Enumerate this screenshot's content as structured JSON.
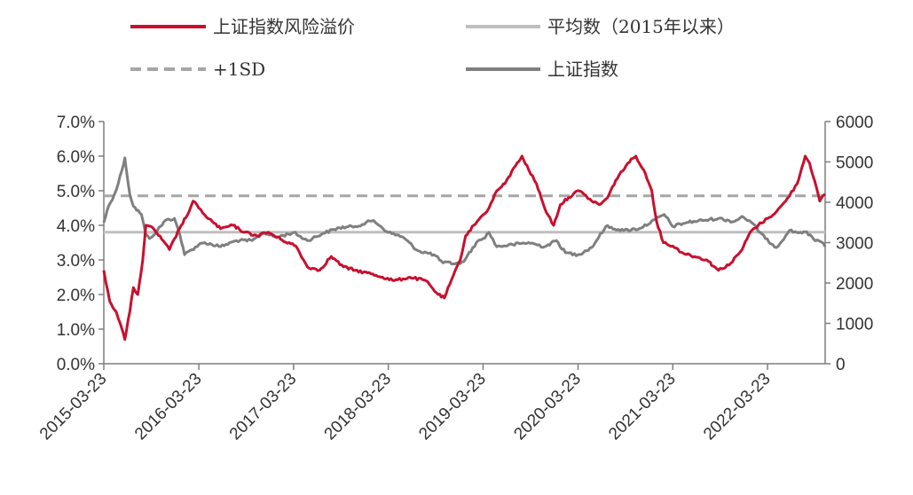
{
  "chart_data": {
    "type": "line",
    "x": {
      "type": "date",
      "start": "2015-03-23",
      "end": "2022-10-31",
      "ticks": [
        "2015-03-23",
        "2016-03-23",
        "2017-03-23",
        "2018-03-23",
        "2019-03-23",
        "2020-03-23",
        "2021-03-23",
        "2022-03-23"
      ]
    },
    "y_left": {
      "min": 0,
      "max": 0.07,
      "ticks": [
        "0.0%",
        "1.0%",
        "2.0%",
        "3.0%",
        "4.0%",
        "5.0%",
        "6.0%",
        "7.0%"
      ]
    },
    "y_right": {
      "min": 0,
      "max": 6000,
      "ticks": [
        "0",
        "1000",
        "2000",
        "3000",
        "4000",
        "5000",
        "6000"
      ]
    },
    "legend": [
      {
        "label": "上证指数风险溢价",
        "color": "#c8102e",
        "style": "solid"
      },
      {
        "label": "平均数（2015年以来）",
        "color": "#bfbfbf",
        "style": "solid"
      },
      {
        "label": "+1SD",
        "color": "#a6a6a6",
        "style": "dashed"
      },
      {
        "label": "上证指数",
        "color": "#7f7f7f",
        "style": "solid"
      }
    ],
    "series": [
      {
        "name": "上证指数风险溢价",
        "axis": "left",
        "color": "#c8102e",
        "points": [
          [
            "2015-03-23",
            0.027
          ],
          [
            "2015-04-15",
            0.018
          ],
          [
            "2015-05-10",
            0.015
          ],
          [
            "2015-06-01",
            0.01
          ],
          [
            "2015-06-12",
            0.007
          ],
          [
            "2015-07-01",
            0.015
          ],
          [
            "2015-07-15",
            0.022
          ],
          [
            "2015-08-01",
            0.02
          ],
          [
            "2015-08-20",
            0.03
          ],
          [
            "2015-09-01",
            0.04
          ],
          [
            "2015-10-01",
            0.039
          ],
          [
            "2015-11-01",
            0.036
          ],
          [
            "2015-12-01",
            0.033
          ],
          [
            "2016-01-15",
            0.04
          ],
          [
            "2016-02-15",
            0.044
          ],
          [
            "2016-03-01",
            0.047
          ],
          [
            "2016-03-23",
            0.045
          ],
          [
            "2016-04-15",
            0.043
          ],
          [
            "2016-05-15",
            0.041
          ],
          [
            "2016-06-15",
            0.039
          ],
          [
            "2016-08-01",
            0.04
          ],
          [
            "2016-09-15",
            0.038
          ],
          [
            "2016-11-01",
            0.037
          ],
          [
            "2016-12-15",
            0.038
          ],
          [
            "2017-02-01",
            0.036
          ],
          [
            "2017-04-01",
            0.034
          ],
          [
            "2017-05-15",
            0.028
          ],
          [
            "2017-07-01",
            0.027
          ],
          [
            "2017-08-15",
            0.031
          ],
          [
            "2017-10-01",
            0.028
          ],
          [
            "2017-11-15",
            0.027
          ],
          [
            "2018-01-15",
            0.026
          ],
          [
            "2018-03-01",
            0.025
          ],
          [
            "2018-04-15",
            0.024
          ],
          [
            "2018-06-15",
            0.025
          ],
          [
            "2018-08-15",
            0.024
          ],
          [
            "2018-10-01",
            0.02
          ],
          [
            "2018-10-25",
            0.019
          ],
          [
            "2018-11-15",
            0.023
          ],
          [
            "2018-12-25",
            0.03
          ],
          [
            "2019-01-15",
            0.037
          ],
          [
            "2019-02-15",
            0.04
          ],
          [
            "2019-03-23",
            0.043
          ],
          [
            "2019-04-15",
            0.045
          ],
          [
            "2019-05-15",
            0.05
          ],
          [
            "2019-06-15",
            0.052
          ],
          [
            "2019-08-01",
            0.058
          ],
          [
            "2019-08-20",
            0.06
          ],
          [
            "2019-09-15",
            0.056
          ],
          [
            "2019-10-15",
            0.052
          ],
          [
            "2019-11-15",
            0.045
          ],
          [
            "2019-12-20",
            0.04
          ],
          [
            "2020-01-15",
            0.046
          ],
          [
            "2020-02-15",
            0.048
          ],
          [
            "2020-03-23",
            0.05
          ],
          [
            "2020-04-15",
            0.049
          ],
          [
            "2020-05-15",
            0.047
          ],
          [
            "2020-06-15",
            0.046
          ],
          [
            "2020-07-15",
            0.048
          ],
          [
            "2020-08-15",
            0.053
          ],
          [
            "2020-10-01",
            0.058
          ],
          [
            "2020-11-01",
            0.06
          ],
          [
            "2020-12-01",
            0.056
          ],
          [
            "2021-01-01",
            0.05
          ],
          [
            "2021-01-20",
            0.041
          ],
          [
            "2021-02-15",
            0.035
          ],
          [
            "2021-03-23",
            0.034
          ],
          [
            "2021-05-01",
            0.032
          ],
          [
            "2021-06-15",
            0.031
          ],
          [
            "2021-08-01",
            0.03
          ],
          [
            "2021-09-15",
            0.027
          ],
          [
            "2021-11-01",
            0.029
          ],
          [
            "2021-12-15",
            0.033
          ],
          [
            "2022-01-15",
            0.038
          ],
          [
            "2022-02-15",
            0.04
          ],
          [
            "2022-03-23",
            0.042
          ],
          [
            "2022-04-27",
            0.044
          ],
          [
            "2022-06-01",
            0.047
          ],
          [
            "2022-07-15",
            0.052
          ],
          [
            "2022-08-15",
            0.06
          ],
          [
            "2022-09-01",
            0.058
          ],
          [
            "2022-09-20",
            0.053
          ],
          [
            "2022-10-10",
            0.047
          ],
          [
            "2022-10-31",
            0.049
          ]
        ]
      },
      {
        "name": "平均数（2015年以来）",
        "axis": "left",
        "color": "#bfbfbf",
        "points": [
          [
            "2015-03-23",
            0.038
          ],
          [
            "2022-10-31",
            0.038
          ]
        ]
      },
      {
        "name": "+1SD",
        "axis": "left",
        "color": "#a6a6a6",
        "dashed": true,
        "points": [
          [
            "2015-03-23",
            0.0485
          ],
          [
            "2022-10-31",
            0.0485
          ]
        ]
      },
      {
        "name": "上证指数",
        "axis": "right",
        "color": "#7f7f7f",
        "points": [
          [
            "2015-03-23",
            3500
          ],
          [
            "2015-04-10",
            3900
          ],
          [
            "2015-05-10",
            4300
          ],
          [
            "2015-06-01",
            4800
          ],
          [
            "2015-06-12",
            5100
          ],
          [
            "2015-07-01",
            4200
          ],
          [
            "2015-07-15",
            3900
          ],
          [
            "2015-08-15",
            3700
          ],
          [
            "2015-09-01",
            3200
          ],
          [
            "2015-09-15",
            3100
          ],
          [
            "2015-10-15",
            3300
          ],
          [
            "2015-11-15",
            3550
          ],
          [
            "2015-12-20",
            3600
          ],
          [
            "2016-01-10",
            3200
          ],
          [
            "2016-01-28",
            2700
          ],
          [
            "2016-03-23",
            2950
          ],
          [
            "2016-04-15",
            3000
          ],
          [
            "2016-06-15",
            2900
          ],
          [
            "2016-08-15",
            3050
          ],
          [
            "2016-10-15",
            3050
          ],
          [
            "2016-11-30",
            3250
          ],
          [
            "2017-01-15",
            3130
          ],
          [
            "2017-03-23",
            3250
          ],
          [
            "2017-05-15",
            3050
          ],
          [
            "2017-07-15",
            3230
          ],
          [
            "2017-09-15",
            3370
          ],
          [
            "2017-11-15",
            3400
          ],
          [
            "2018-01-25",
            3550
          ],
          [
            "2018-03-23",
            3250
          ],
          [
            "2018-05-15",
            3150
          ],
          [
            "2018-07-15",
            2800
          ],
          [
            "2018-09-15",
            2700
          ],
          [
            "2018-10-20",
            2500
          ],
          [
            "2018-12-25",
            2480
          ],
          [
            "2019-01-15",
            2600
          ],
          [
            "2019-02-25",
            3000
          ],
          [
            "2019-03-23",
            3100
          ],
          [
            "2019-04-15",
            3250
          ],
          [
            "2019-05-15",
            2900
          ],
          [
            "2019-07-15",
            2950
          ],
          [
            "2019-09-15",
            3000
          ],
          [
            "2019-11-15",
            2900
          ],
          [
            "2019-12-31",
            3050
          ],
          [
            "2020-02-03",
            2750
          ],
          [
            "2020-03-23",
            2700
          ],
          [
            "2020-05-15",
            2880
          ],
          [
            "2020-07-08",
            3400
          ],
          [
            "2020-09-15",
            3300
          ],
          [
            "2020-11-15",
            3350
          ],
          [
            "2021-01-15",
            3570
          ],
          [
            "2021-02-18",
            3700
          ],
          [
            "2021-03-23",
            3400
          ],
          [
            "2021-05-15",
            3500
          ],
          [
            "2021-07-15",
            3550
          ],
          [
            "2021-09-15",
            3600
          ],
          [
            "2021-11-15",
            3520
          ],
          [
            "2021-12-15",
            3650
          ],
          [
            "2022-01-20",
            3500
          ],
          [
            "2022-03-15",
            3100
          ],
          [
            "2022-04-27",
            2880
          ],
          [
            "2022-06-15",
            3300
          ],
          [
            "2022-07-15",
            3250
          ],
          [
            "2022-08-15",
            3270
          ],
          [
            "2022-09-15",
            3100
          ],
          [
            "2022-10-15",
            3020
          ],
          [
            "2022-10-31",
            2900
          ]
        ]
      }
    ]
  }
}
